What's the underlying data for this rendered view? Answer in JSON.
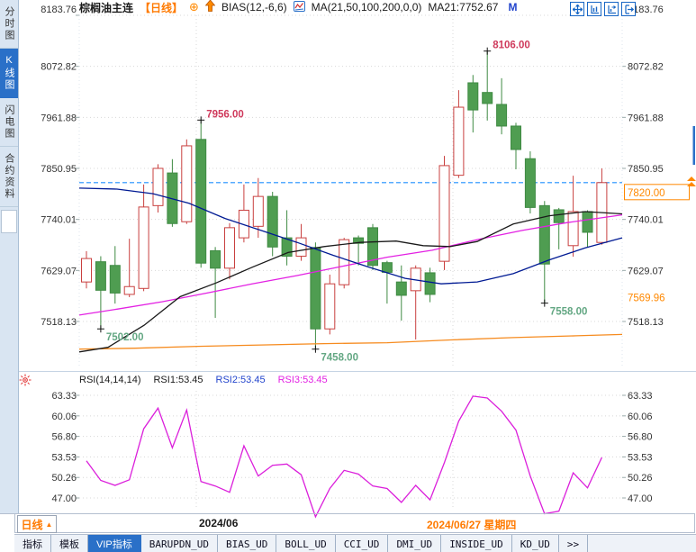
{
  "sidebar": {
    "items": [
      {
        "label": "分时图",
        "selected": false
      },
      {
        "label": "K线图",
        "selected": true
      },
      {
        "label": "闪电图",
        "selected": false
      },
      {
        "label": "合约资料",
        "selected": false
      }
    ]
  },
  "header": {
    "symbol": "棕榈油主连",
    "period_tag": "【日线】",
    "add_icon": "⊕",
    "indicator1": "BIAS(12,-6,6)",
    "indicator2": "MA(21,50,100,200,0,0)",
    "ma_value": "MA21:7752.67",
    "m_label": "M",
    "icons": [
      "move-crosshair-icon",
      "axis-zoom-left-icon",
      "axis-zoom-right-icon",
      "exit-pane-icon"
    ]
  },
  "main_chart": {
    "left_axis": [
      "8183.76",
      "8072.82",
      "7961.88",
      "7850.95",
      "7740.01",
      "7629.07",
      "7518.13"
    ],
    "right_axis": [
      "8183.76",
      "8072.82",
      "7961.88",
      "7850.95",
      "7740.01",
      "7629.07",
      "7518.13"
    ],
    "price_marker": {
      "value": "7820.00"
    },
    "secondary_marker": {
      "value": "7569.96"
    },
    "annotations": [
      {
        "text": "7956.00",
        "price": 7956.0,
        "index": 8,
        "kind": "high"
      },
      {
        "text": "8106.00",
        "price": 8106.0,
        "index": 28,
        "kind": "high"
      },
      {
        "text": "7502.00",
        "price": 7502.0,
        "index": 1,
        "kind": "low"
      },
      {
        "text": "7458.00",
        "price": 7458.0,
        "index": 16,
        "kind": "low"
      },
      {
        "text": "7558.00",
        "price": 7558.0,
        "index": 32,
        "kind": "low"
      }
    ]
  },
  "rsi_panel": {
    "indicator_label": "RSI(14,14,14)",
    "rsi1": "RSI1:53.45",
    "rsi2": "RSI2:53.45",
    "rsi3": "RSI3:53.45",
    "axis": [
      "63.33",
      "60.06",
      "56.80",
      "53.53",
      "50.26",
      "47.00"
    ]
  },
  "bottom_bar": {
    "period_label": "日线",
    "arrow": "▲",
    "month_label": "2024/06",
    "date_label": "2024/06/27 星期四"
  },
  "tab_bar": {
    "tabs": [
      {
        "label": "指标",
        "cjk": true,
        "selected": false
      },
      {
        "label": "模板",
        "cjk": true,
        "selected": false
      },
      {
        "label": "VIP指标",
        "cjk": true,
        "selected": true
      },
      {
        "label": "BARUPDN_UD",
        "cjk": false,
        "selected": false
      },
      {
        "label": "BIAS_UD",
        "cjk": false,
        "selected": false
      },
      {
        "label": "BOLL_UD",
        "cjk": false,
        "selected": false
      },
      {
        "label": "CCI_UD",
        "cjk": false,
        "selected": false
      },
      {
        "label": "DMI_UD",
        "cjk": false,
        "selected": false
      },
      {
        "label": "INSIDE_UD",
        "cjk": false,
        "selected": false
      },
      {
        "label": "KD_UD",
        "cjk": false,
        "selected": false
      },
      {
        "label": ">>",
        "cjk": false,
        "selected": false
      }
    ]
  },
  "colors": {
    "up": "#c9403f",
    "down": "#4f9d51",
    "down_stroke": "#3f8a43",
    "annotation_high": "#cf3a5c",
    "annotation_low": "#63a783",
    "current_price_line": "#1e8fff",
    "marker_orange": "#ff8800",
    "grid": "#d8d8d8",
    "rsi_line": "#db1fdb"
  },
  "chart_data": {
    "type": "candlestick",
    "title": "棕榈油主连 日线",
    "price_range": [
      7518.13,
      8183.76
    ],
    "current_price": 7820.0,
    "candles_ohlc": [
      [
        7604,
        7671,
        7590,
        7655
      ],
      [
        7648,
        7660,
        7502,
        7586
      ],
      [
        7640,
        7682,
        7557,
        7580
      ],
      [
        7577,
        7698,
        7571,
        7594
      ],
      [
        7590,
        7816,
        7584,
        7767
      ],
      [
        7770,
        7860,
        7755,
        7851
      ],
      [
        7841,
        7871,
        7724,
        7731
      ],
      [
        7735,
        7914,
        7730,
        7900
      ],
      [
        7914,
        7956,
        7635,
        7645
      ],
      [
        7672,
        7680,
        7526,
        7634
      ],
      [
        7634,
        7732,
        7610,
        7722
      ],
      [
        7700,
        7816,
        7690,
        7760
      ],
      [
        7725,
        7830,
        7700,
        7790
      ],
      [
        7790,
        7800,
        7660,
        7680
      ],
      [
        7700,
        7760,
        7640,
        7660
      ],
      [
        7660,
        7730,
        7650,
        7700
      ],
      [
        7679,
        7690,
        7458,
        7502
      ],
      [
        7502,
        7620,
        7490,
        7600
      ],
      [
        7598,
        7700,
        7590,
        7696
      ],
      [
        7700,
        7705,
        7640,
        7688
      ],
      [
        7722,
        7730,
        7630,
        7640
      ],
      [
        7646,
        7650,
        7557,
        7625
      ],
      [
        7604,
        7640,
        7520,
        7575
      ],
      [
        7585,
        7640,
        7479,
        7634
      ],
      [
        7624,
        7635,
        7560,
        7577
      ],
      [
        7649,
        7878,
        7630,
        7857
      ],
      [
        7836,
        8021,
        7830,
        7984
      ],
      [
        8037,
        8054,
        7929,
        7978
      ],
      [
        8016,
        8106,
        7955,
        7992
      ],
      [
        7990,
        8047,
        7925,
        7943
      ],
      [
        7943,
        7950,
        7849,
        7892
      ],
      [
        7872,
        7888,
        7753,
        7766
      ],
      [
        7770,
        7780,
        7558,
        7643
      ],
      [
        7761,
        7765,
        7675,
        7733
      ],
      [
        7683,
        7835,
        7659,
        7757
      ],
      [
        7757,
        7760,
        7680,
        7712
      ],
      [
        7690,
        7851,
        7685,
        7820
      ]
    ],
    "ma_lines": [
      {
        "name": "ma-orange",
        "color": "#f68b1f",
        "points": [
          [
            88,
            7458
          ],
          [
            150,
            7460
          ],
          [
            220,
            7464
          ],
          [
            290,
            7467
          ],
          [
            360,
            7470
          ],
          [
            430,
            7472
          ],
          [
            500,
            7478
          ],
          [
            570,
            7483
          ],
          [
            640,
            7487
          ],
          [
            691,
            7490
          ]
        ]
      },
      {
        "name": "ma-magenta",
        "color": "#e321e3",
        "points": [
          [
            88,
            7532
          ],
          [
            130,
            7545
          ],
          [
            180,
            7561
          ],
          [
            230,
            7580
          ],
          [
            280,
            7600
          ],
          [
            330,
            7618
          ],
          [
            380,
            7638
          ],
          [
            430,
            7658
          ],
          [
            480,
            7673
          ],
          [
            530,
            7696
          ],
          [
            580,
            7716
          ],
          [
            630,
            7733
          ],
          [
            691,
            7750
          ]
        ]
      },
      {
        "name": "ma-black",
        "color": "#1a1a1a",
        "points": [
          [
            88,
            7452
          ],
          [
            120,
            7462
          ],
          [
            160,
            7510
          ],
          [
            200,
            7572
          ],
          [
            240,
            7602
          ],
          [
            280,
            7636
          ],
          [
            320,
            7668
          ],
          [
            360,
            7681
          ],
          [
            400,
            7690
          ],
          [
            440,
            7693
          ],
          [
            470,
            7683
          ],
          [
            500,
            7681
          ],
          [
            530,
            7692
          ],
          [
            570,
            7730
          ],
          [
            610,
            7748
          ],
          [
            650,
            7757
          ],
          [
            691,
            7752
          ]
        ]
      },
      {
        "name": "ma-navy",
        "color": "#001a93",
        "points": [
          [
            88,
            7808
          ],
          [
            130,
            7806
          ],
          [
            170,
            7796
          ],
          [
            210,
            7775
          ],
          [
            250,
            7742
          ],
          [
            290,
            7716
          ],
          [
            330,
            7690
          ],
          [
            370,
            7662
          ],
          [
            410,
            7636
          ],
          [
            450,
            7612
          ],
          [
            490,
            7600
          ],
          [
            530,
            7604
          ],
          [
            570,
            7622
          ],
          [
            610,
            7652
          ],
          [
            650,
            7678
          ],
          [
            691,
            7700
          ]
        ]
      }
    ],
    "rsi": {
      "type": "line",
      "axis_range": [
        47.0,
        63.33
      ],
      "values": [
        52.9,
        49.8,
        49.0,
        49.9,
        58.0,
        61.3,
        55.0,
        61.0,
        49.6,
        48.9,
        47.9,
        55.3,
        50.5,
        52.2,
        52.4,
        50.7,
        44.0,
        48.5,
        51.4,
        50.8,
        48.9,
        48.5,
        46.3,
        49.0,
        46.7,
        52.6,
        59.2,
        63.2,
        62.9,
        60.8,
        57.8,
        50.5,
        44.5,
        44.9,
        51.0,
        48.6,
        53.45
      ]
    },
    "x_gridlines": [
      218,
      503
    ]
  }
}
